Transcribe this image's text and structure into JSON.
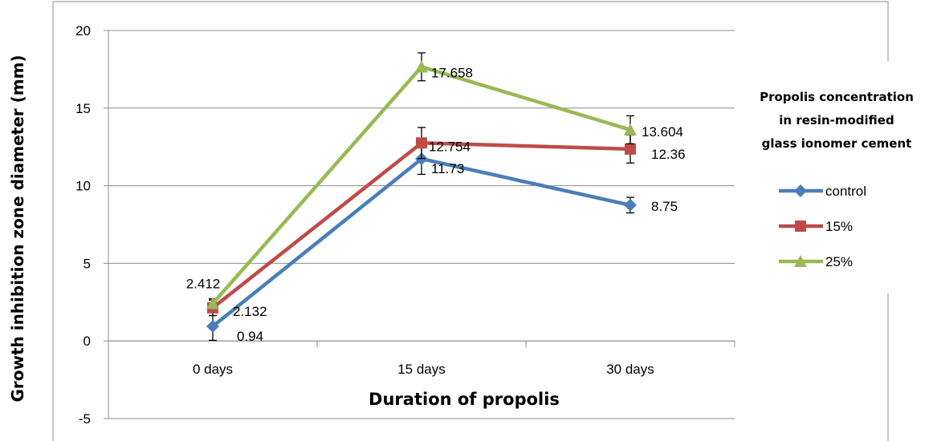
{
  "chart_data": {
    "type": "line",
    "categories": [
      "0 days",
      "15 days",
      "30 days"
    ],
    "series": [
      {
        "name": "control",
        "values": [
          0.94,
          11.73,
          8.75
        ],
        "error": [
          0.9,
          1.0,
          0.5
        ],
        "color": "#4a7ebb",
        "marker": "diamond"
      },
      {
        "name": "15%",
        "values": [
          2.132,
          12.754,
          12.36
        ],
        "error": [
          0.5,
          1.0,
          0.9
        ],
        "color": "#be4b48",
        "marker": "square"
      },
      {
        "name": "25%",
        "values": [
          2.412,
          17.658,
          13.604
        ],
        "error": [
          0.3,
          0.9,
          0.9
        ],
        "color": "#98b954",
        "marker": "triangle"
      }
    ],
    "data_labels": [
      {
        "text": "0.94"
      },
      {
        "text": "11.73"
      },
      {
        "text": "8.75"
      },
      {
        "text": "2.132"
      },
      {
        "text": "12.754"
      },
      {
        "text": "12.36"
      },
      {
        "text": "2.412"
      },
      {
        "text": "17.658"
      },
      {
        "text": "13.604"
      }
    ],
    "xlabel": "Duration of propolis",
    "ylabel": "Growth inhibition zone diameter (mm)",
    "ylim": [
      -5,
      20
    ],
    "yticks": [
      "-5",
      "0",
      "5",
      "10",
      "15",
      "20"
    ],
    "grid": true,
    "legend": {
      "title_lines": [
        "Propolis concentration",
        "in resin-modified",
        "glass ionomer cement"
      ],
      "placement": "right"
    }
  }
}
